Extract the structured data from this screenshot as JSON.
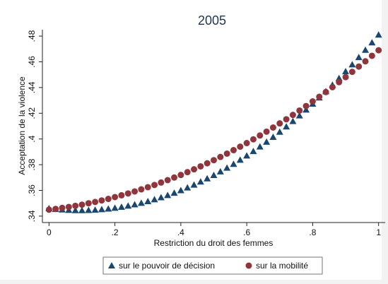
{
  "chart_data": {
    "type": "scatter",
    "title": "2005",
    "x_label": "Restriction du droit des femmes",
    "y_label": "Acceptation de la violence",
    "x": [
      0,
      0.02,
      0.04,
      0.06,
      0.08,
      0.1,
      0.12,
      0.14,
      0.16,
      0.18,
      0.2,
      0.22,
      0.24,
      0.26,
      0.28,
      0.3,
      0.32,
      0.34,
      0.36,
      0.38,
      0.4,
      0.42,
      0.44,
      0.46,
      0.48,
      0.5,
      0.52,
      0.54,
      0.56,
      0.58,
      0.6,
      0.62,
      0.64,
      0.66,
      0.68,
      0.7,
      0.72,
      0.74,
      0.76,
      0.78,
      0.8,
      0.82,
      0.84,
      0.86,
      0.88,
      0.9,
      0.92,
      0.94,
      0.96,
      0.98,
      1
    ],
    "series": [
      {
        "name": "sur le pouvoir de décision",
        "color": "#1a476f",
        "marker": "triangle",
        "values": [
          0.346,
          0.3454,
          0.345,
          0.3447,
          0.3445,
          0.3445,
          0.3446,
          0.3448,
          0.3452,
          0.3457,
          0.3463,
          0.3471,
          0.348,
          0.349,
          0.3502,
          0.3515,
          0.3529,
          0.3545,
          0.3562,
          0.358,
          0.36,
          0.3621,
          0.3643,
          0.3667,
          0.3692,
          0.3718,
          0.3746,
          0.3775,
          0.3805,
          0.3837,
          0.387,
          0.3904,
          0.394,
          0.3977,
          0.4015,
          0.4055,
          0.4096,
          0.4138,
          0.4182,
          0.4227,
          0.4273,
          0.4321,
          0.437,
          0.442,
          0.4472,
          0.4525,
          0.4579,
          0.4635,
          0.4692,
          0.475,
          0.481
        ]
      },
      {
        "name": "sur la mobilité",
        "color": "#90353b",
        "marker": "circle",
        "values": [
          0.345,
          0.3456,
          0.3464,
          0.3471,
          0.348,
          0.3489,
          0.35,
          0.351,
          0.3522,
          0.3534,
          0.3548,
          0.3562,
          0.3576,
          0.3592,
          0.3608,
          0.3625,
          0.3642,
          0.3661,
          0.368,
          0.37,
          0.372,
          0.3742,
          0.3764,
          0.3787,
          0.3811,
          0.3835,
          0.386,
          0.3886,
          0.3913,
          0.394,
          0.3968,
          0.3997,
          0.4027,
          0.4057,
          0.4089,
          0.4121,
          0.4153,
          0.4187,
          0.4221,
          0.4256,
          0.4292,
          0.4328,
          0.4365,
          0.4403,
          0.4442,
          0.4481,
          0.4522,
          0.4563,
          0.4604,
          0.4647,
          0.469
        ]
      }
    ],
    "xlim": [
      -0.02,
      1.02
    ],
    "ylim": [
      0.335,
      0.485
    ],
    "xticks": [
      0,
      {
        "value": 0.2,
        "label": ".2"
      },
      {
        "value": 0.4,
        "label": ".4"
      },
      {
        "value": 0.6,
        "label": ".6"
      },
      {
        "value": 0.8,
        "label": ".8"
      },
      1
    ],
    "yticks": [
      {
        "value": 0.34,
        "label": ".34"
      },
      {
        "value": 0.36,
        "label": ".36"
      },
      {
        "value": 0.38,
        "label": ".38"
      },
      {
        "value": 0.4,
        "label": ".4"
      },
      {
        "value": 0.42,
        "label": ".42"
      },
      {
        "value": 0.44,
        "label": ".44"
      },
      {
        "value": 0.46,
        "label": ".46"
      },
      {
        "value": 0.48,
        "label": ".48"
      }
    ],
    "grid": false,
    "legend": "bottom"
  }
}
